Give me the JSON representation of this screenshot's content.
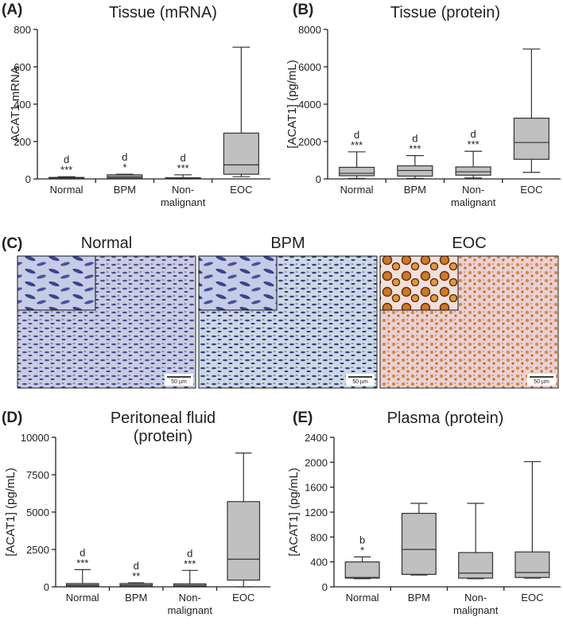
{
  "chart_data": [
    {
      "type": "box",
      "panel_label": "(A)",
      "title": "Tissue (mRNA)",
      "y_label": "ACAT1 mRNA",
      "categories": [
        "Normal",
        "BPM",
        "Non-\nmalignant",
        "EOC"
      ],
      "boxes": [
        {
          "min": 0,
          "q1": 2,
          "median": 5,
          "q3": 8,
          "max": 12
        },
        {
          "min": 1,
          "q1": 5,
          "median": 12,
          "q3": 22,
          "max": 25
        },
        {
          "min": 0,
          "q1": 1,
          "median": 3,
          "q3": 6,
          "max": 22
        },
        {
          "min": 12,
          "q1": 25,
          "median": 75,
          "q3": 245,
          "max": 705
        }
      ],
      "letters": [
        "d",
        "d",
        "d",
        null
      ],
      "stars": [
        "***",
        "*",
        "***",
        null
      ],
      "color": "#c0c0c0",
      "ylim": [
        0,
        800
      ],
      "yticks": [
        0,
        200,
        400,
        600,
        800
      ]
    },
    {
      "type": "box",
      "panel_label": "(B)",
      "title": "Tissue (protein)",
      "y_label": "[ACAT1] (pg/mL)",
      "categories": [
        "Normal",
        "BPM",
        "Non-\nmalignant",
        "EOC"
      ],
      "boxes": [
        {
          "min": 30,
          "q1": 170,
          "median": 300,
          "q3": 620,
          "max": 1450
        },
        {
          "min": 30,
          "q1": 150,
          "median": 450,
          "q3": 700,
          "max": 1250
        },
        {
          "min": 50,
          "q1": 200,
          "median": 380,
          "q3": 640,
          "max": 1480
        },
        {
          "min": 350,
          "q1": 1050,
          "median": 1950,
          "q3": 3250,
          "max": 6950
        }
      ],
      "letters": [
        "d",
        "d",
        "d",
        null
      ],
      "stars": [
        "***",
        "***",
        "***",
        null
      ],
      "color": "#c0c0c0",
      "ylim": [
        0,
        8000
      ],
      "yticks": [
        0,
        2000,
        4000,
        6000,
        8000
      ]
    },
    {
      "type": "box",
      "panel_label": "(D)",
      "title": "Peritoneal fluid\n(protein)",
      "y_label": "[ACAT1] (pg/mL)",
      "categories": [
        "Normal",
        "BPM",
        "Non-\nmalignant",
        "EOC"
      ],
      "boxes": [
        {
          "min": 0,
          "q1": 40,
          "median": 120,
          "q3": 220,
          "max": 1150
        },
        {
          "min": 0,
          "q1": 40,
          "median": 120,
          "q3": 220,
          "max": 270
        },
        {
          "min": 0,
          "q1": 30,
          "median": 100,
          "q3": 200,
          "max": 1100
        },
        {
          "min": 0,
          "q1": 450,
          "median": 1850,
          "q3": 5700,
          "max": 8950
        }
      ],
      "letters": [
        "d",
        "d",
        "d",
        null
      ],
      "stars": [
        "***",
        "**",
        "***",
        null
      ],
      "color": "#c0c0c0",
      "ylim": [
        0,
        10000
      ],
      "yticks": [
        0,
        2500,
        5000,
        7500,
        10000
      ]
    },
    {
      "type": "box",
      "panel_label": "(E)",
      "title": "Plasma (protein)",
      "y_label": "[ACAT1] (pg/mL)",
      "categories": [
        "Normal",
        "BPM",
        "Non-\nmalignant",
        "EOC"
      ],
      "boxes": [
        {
          "min": 130,
          "q1": 140,
          "median": 150,
          "q3": 400,
          "max": 480
        },
        {
          "min": 190,
          "q1": 200,
          "median": 600,
          "q3": 1180,
          "max": 1340
        },
        {
          "min": 130,
          "q1": 140,
          "median": 220,
          "q3": 550,
          "max": 1340
        },
        {
          "min": 140,
          "q1": 150,
          "median": 230,
          "q3": 560,
          "max": 2010
        }
      ],
      "letters": [
        "b",
        null,
        null,
        null
      ],
      "stars": [
        "*",
        null,
        null,
        null
      ],
      "color": "#c0c0c0",
      "ylim": [
        0,
        2400
      ],
      "yticks": [
        0,
        400,
        800,
        1200,
        1600,
        2000,
        2400
      ]
    }
  ],
  "images": {
    "panel_label": "(C)",
    "panels": [
      {
        "title": "Normal",
        "scale_bar": "50 µm"
      },
      {
        "title": "BPM",
        "scale_bar": "50 µm"
      },
      {
        "title": "EOC",
        "scale_bar": "50 µm"
      }
    ]
  }
}
